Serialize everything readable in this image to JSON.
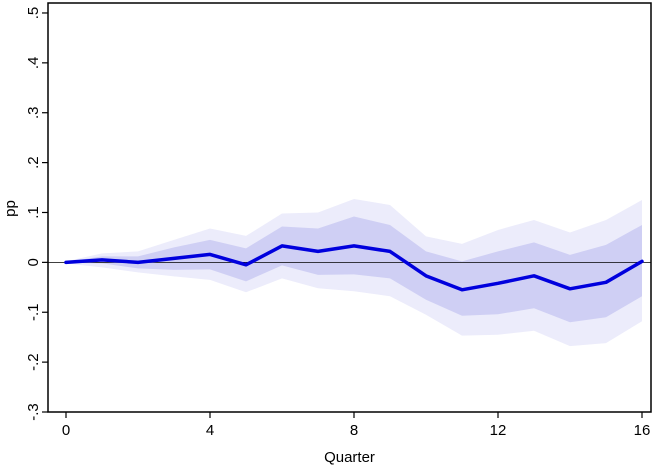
{
  "chart_data": {
    "type": "line",
    "title": "",
    "xlabel": "Quarter",
    "ylabel": "pp",
    "xlim": [
      -0.5,
      16.25
    ],
    "ylim": [
      -0.3,
      0.52
    ],
    "xticks": [
      0,
      4,
      8,
      12,
      16
    ],
    "xtick_labels": [
      "0",
      "4",
      "8",
      "12",
      "16"
    ],
    "yticks": [
      -0.3,
      -0.2,
      -0.1,
      0,
      0.1,
      0.2,
      0.3,
      0.4,
      0.5
    ],
    "ytick_labels": [
      "-.3",
      "-.2",
      "-.1",
      "0",
      ".1",
      ".2",
      ".3",
      ".4",
      ".5"
    ],
    "grid": false,
    "zero_line": true,
    "x": [
      0,
      1,
      2,
      3,
      4,
      5,
      6,
      7,
      8,
      9,
      10,
      11,
      12,
      13,
      14,
      15,
      16
    ],
    "series": [
      {
        "values": [
          0,
          0.005,
          0.0,
          0.008,
          0.016,
          -0.005,
          0.033,
          0.022,
          0.033,
          0.022,
          -0.027,
          -0.055,
          -0.042,
          -0.027,
          -0.053,
          -0.04,
          0.002
        ],
        "color": "#0000dd"
      }
    ],
    "bands": [
      {
        "kind": "outer",
        "color": "#ececfb",
        "upper": [
          0.002,
          0.018,
          0.022,
          0.045,
          0.068,
          0.053,
          0.098,
          0.1,
          0.127,
          0.115,
          0.052,
          0.037,
          0.065,
          0.085,
          0.06,
          0.085,
          0.125
        ],
        "lower": [
          -0.002,
          -0.01,
          -0.02,
          -0.028,
          -0.035,
          -0.06,
          -0.032,
          -0.052,
          -0.058,
          -0.068,
          -0.105,
          -0.147,
          -0.145,
          -0.137,
          -0.168,
          -0.162,
          -0.118
        ]
      },
      {
        "kind": "inner",
        "color": "#cfcff4",
        "upper": [
          0.001,
          0.012,
          0.012,
          0.03,
          0.045,
          0.028,
          0.072,
          0.068,
          0.092,
          0.075,
          0.022,
          0.002,
          0.022,
          0.04,
          0.015,
          0.035,
          0.075
        ],
        "lower": [
          -0.001,
          -0.002,
          -0.012,
          -0.015,
          -0.014,
          -0.038,
          -0.006,
          -0.025,
          -0.024,
          -0.032,
          -0.075,
          -0.107,
          -0.104,
          -0.092,
          -0.12,
          -0.11,
          -0.068
        ]
      }
    ]
  }
}
